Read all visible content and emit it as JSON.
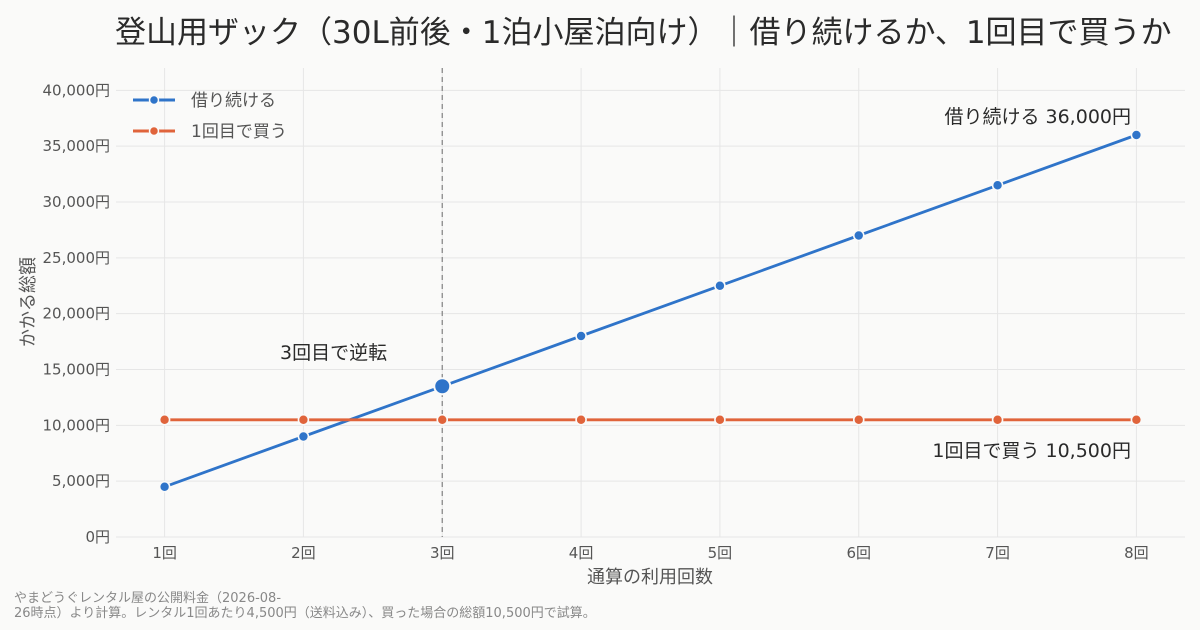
{
  "colors": {
    "series_rent": "#2f74c9",
    "series_buy": "#e0643b",
    "grid": "#e6e6e6",
    "ref_line": "#8a8a8a",
    "background": "#fafaf9"
  },
  "chart_data": {
    "type": "line",
    "title": "登山用ザック（30L前後・1泊小屋泊向け）｜借り続けるか、1回目で買うか",
    "xlabel": "通算の利用回数",
    "ylabel": "かかる総額",
    "x": [
      1,
      2,
      3,
      4,
      5,
      6,
      7,
      8
    ],
    "x_tick_labels": [
      "1回",
      "2回",
      "3回",
      "4回",
      "5回",
      "6回",
      "7回",
      "8回"
    ],
    "xlim": [
      0.65,
      8.35
    ],
    "ylim": [
      0,
      42000
    ],
    "y_ticks": [
      0,
      5000,
      10000,
      15000,
      20000,
      25000,
      30000,
      35000,
      40000
    ],
    "y_tick_labels": [
      "0円",
      "5,000円",
      "10,000円",
      "15,000円",
      "20,000円",
      "25,000円",
      "30,000円",
      "35,000円",
      "40,000円"
    ],
    "grid": true,
    "legend_position": "top-left",
    "series": [
      {
        "name": "借り続ける",
        "color": "#2f74c9",
        "values": [
          4500,
          9000,
          13500,
          18000,
          22500,
          27000,
          31500,
          36000
        ]
      },
      {
        "name": "1回目で買う",
        "color": "#e0643b",
        "values": [
          10500,
          10500,
          10500,
          10500,
          10500,
          10500,
          10500,
          10500
        ]
      }
    ],
    "crossover": {
      "x": 3,
      "y": 13500,
      "label": "3回目で逆転"
    },
    "end_labels": [
      {
        "series": 0,
        "text": "借り続ける  36,000円"
      },
      {
        "series": 1,
        "text": "1回目で買う  10,500円"
      }
    ]
  },
  "source_note": {
    "line1": "やまどうぐレンタル屋の公開料金（2026-08-",
    "line2": "26時点）より計算。レンタル1回あたり4,500円（送料込み）、買った場合の総額10,500円で試算。"
  }
}
